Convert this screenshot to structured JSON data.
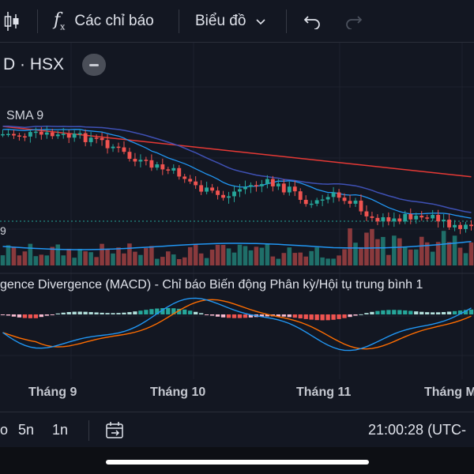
{
  "toolbar": {
    "indicators_label": "Các chỉ báo",
    "chart_type_label": "Biểu đồ"
  },
  "symbol": {
    "text": "D · HSX"
  },
  "legend": {
    "sma_label": "SMA 9",
    "volume_label": "9"
  },
  "macd": {
    "title": "gence Divergence (MACD) - Chỉ báo Biến động Phân kỳ/Hội tụ trung bình 1"
  },
  "time_axis": {
    "labels": [
      "Tháng 9",
      "Tháng 10",
      "Tháng 11",
      "Tháng M"
    ]
  },
  "bottom_bar": {
    "range_partial": "o",
    "range_5y": "5n",
    "range_1y": "1n",
    "clock": "21:00:28 (UTC-"
  },
  "colors": {
    "background": "#131722",
    "up": "#26a69a",
    "down": "#ef5350",
    "sma_fast": "#2196f3",
    "sma_slow": "#3f51b5",
    "sma_long": "#e53935",
    "macd_line": "#2196f3",
    "signal_line": "#ff6d00"
  }
}
